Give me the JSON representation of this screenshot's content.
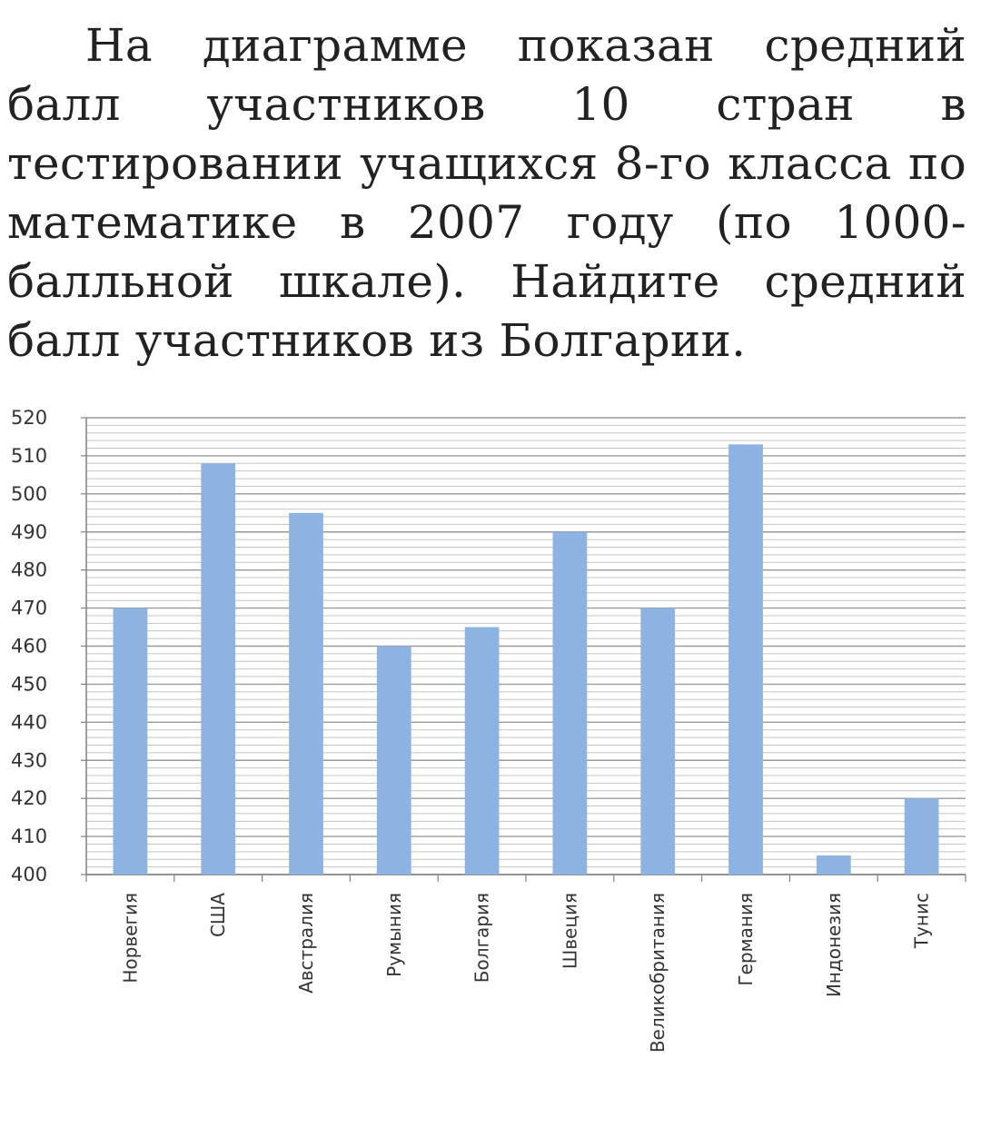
{
  "problem": {
    "text": "На диаграмме показан средний балл участников 10 стран в тестировании учащихся 8-го класса по математике в 2007 году (по 1000-балльной шкале). Найдите средний балл участников из Болгарии."
  },
  "chart_data": {
    "type": "bar",
    "categories": [
      "Норвегия",
      "США",
      "Австралия",
      "Румыния",
      "Болгария",
      "Швеция",
      "Великобритания",
      "Германия",
      "Индонезия",
      "Тунис"
    ],
    "values": [
      470,
      508,
      495,
      460,
      465,
      490,
      470,
      513,
      405,
      420
    ],
    "ylim": [
      400,
      520
    ],
    "y_ticks": [
      400,
      410,
      420,
      430,
      440,
      450,
      460,
      470,
      480,
      490,
      500,
      510,
      520
    ],
    "minor_grid_step": 2,
    "grid": true,
    "bar_color": "#8db3e2",
    "grid_color": "#9a9a9a",
    "legend": "none"
  }
}
